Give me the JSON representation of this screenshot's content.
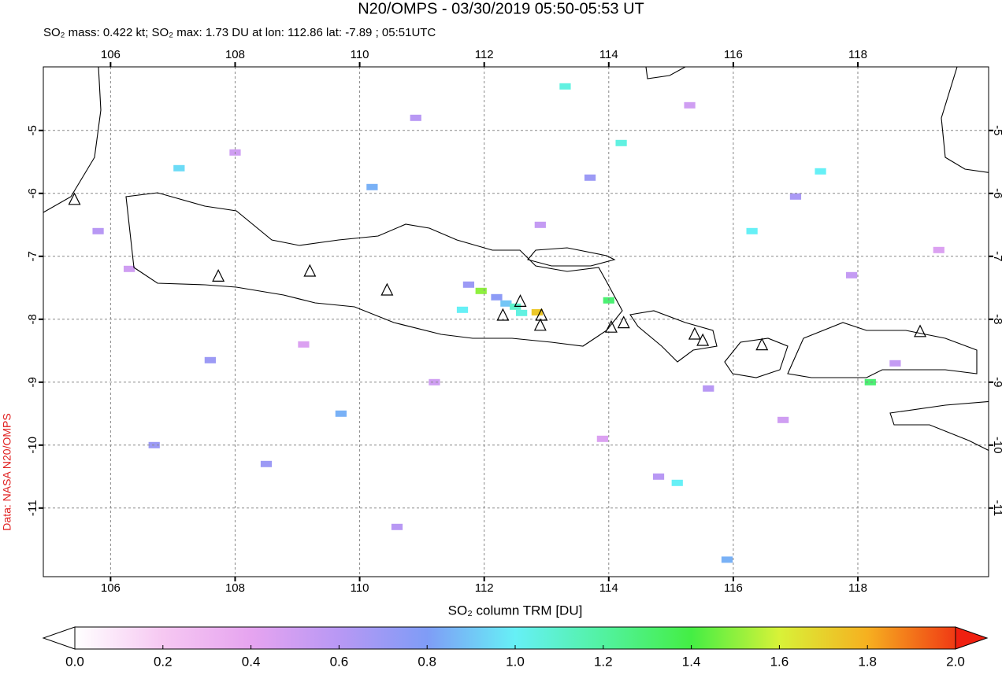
{
  "chart_data": {
    "type": "map",
    "title": "N20/OMPS - 03/30/2019 05:50-05:53 UT",
    "subtitle": "SO₂ mass: 0.422 kt; SO₂ max: 1.73 DU at lon: 112.86 lat: -7.89 ; 05:51UTC",
    "credit": "Data: NASA N20/OMPS",
    "xlim": [
      104.92,
      120.1
    ],
    "ylim": [
      -12.09,
      -3.99
    ],
    "xticks": [
      106,
      108,
      110,
      112,
      114,
      116,
      118
    ],
    "yticks": [
      -5,
      -6,
      -7,
      -8,
      -9,
      -10,
      -11
    ],
    "grid": true,
    "volcanoes": {
      "lon": [
        105.42,
        107.73,
        109.2,
        110.44,
        112.3,
        112.58,
        112.92,
        112.9,
        114.04,
        114.24,
        115.38,
        115.51,
        116.46,
        119.0
      ],
      "lat": [
        -6.1,
        -7.32,
        -7.24,
        -7.54,
        -7.94,
        -7.72,
        -7.94,
        -8.1,
        -8.13,
        -8.06,
        -8.24,
        -8.34,
        -8.41,
        -8.2
      ]
    },
    "pixels": {
      "lon": [
        111.95,
        112.85,
        112.35,
        112.5,
        112.6,
        112.2,
        111.75,
        111.65,
        114.0,
        118.2,
        107.1,
        117.4,
        116.3,
        114.2,
        113.3,
        115.1,
        115.9,
        110.2,
        109.7,
        106.7,
        108.5,
        113.7,
        117.0,
        105.8,
        107.6,
        110.9,
        115.6,
        118.6,
        111.2,
        114.8,
        106.3,
        109.1,
        116.8,
        119.3,
        112.9,
        108.0,
        113.9,
        117.9,
        110.6,
        115.3
      ],
      "lat": [
        -7.55,
        -7.89,
        -7.75,
        -7.8,
        -7.9,
        -7.65,
        -7.45,
        -7.85,
        -7.7,
        -9.0,
        -5.6,
        -5.65,
        -6.6,
        -5.2,
        -4.3,
        -10.6,
        -11.82,
        -5.9,
        -9.5,
        -10.0,
        -10.3,
        -5.75,
        -6.05,
        -6.6,
        -8.65,
        -4.8,
        -9.1,
        -8.7,
        -9.0,
        -10.5,
        -7.2,
        -8.4,
        -9.6,
        -6.9,
        -6.5,
        -5.35,
        -9.9,
        -7.3,
        -11.3,
        -4.6
      ],
      "values": [
        1.5,
        1.73,
        0.9,
        1.1,
        1.05,
        0.75,
        0.7,
        1.0,
        1.3,
        1.3,
        0.95,
        1.0,
        1.0,
        1.05,
        1.05,
        1.0,
        0.85,
        0.85,
        0.85,
        0.7,
        0.7,
        0.7,
        0.65,
        0.6,
        0.7,
        0.6,
        0.6,
        0.55,
        0.5,
        0.6,
        0.5,
        0.45,
        0.5,
        0.45,
        0.55,
        0.5,
        0.45,
        0.55,
        0.6,
        0.5
      ]
    },
    "colorbar": {
      "label": "SO₂ column TRM [DU]",
      "range": [
        0,
        2
      ],
      "ticks": [
        {
          "value": 0,
          "label": "0.0"
        },
        0.2,
        0.4,
        0.6,
        0.8,
        {
          "value": 1,
          "label": "1.0"
        },
        1.2,
        1.4,
        1.6,
        1.8,
        {
          "value": 2,
          "label": "2.0"
        }
      ],
      "colors": [
        "#ffffff",
        "#f6c8f2",
        "#e6a4f0",
        "#b898f4",
        "#7f9cf6",
        "#66f0f6",
        "#52f2a0",
        "#44ee44",
        "#d8f238",
        "#f6b020",
        "#f03a14"
      ],
      "under_color": "#ffffff",
      "over_color": "#f02010"
    }
  }
}
